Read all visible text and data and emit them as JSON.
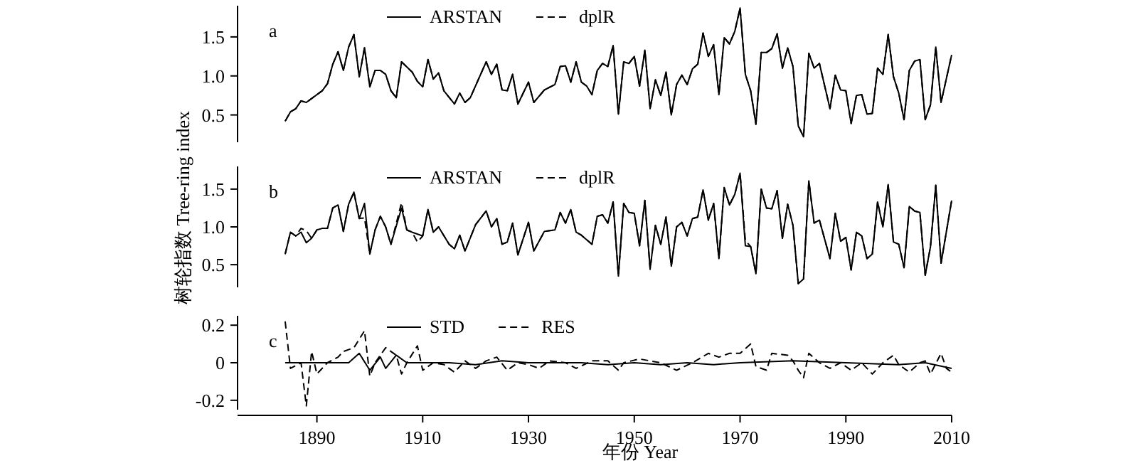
{
  "chart_data": [
    {
      "type": "line",
      "title": "a",
      "legend": "top",
      "tick_labels": "y",
      "xlim": [
        1875,
        2010
      ],
      "ylim": [
        0.15,
        1.9
      ],
      "yticks": [
        0.5,
        {
          "value": 1,
          "label": "1.0"
        },
        1.5
      ],
      "series": [
        {
          "name": "ARSTAN",
          "color": "#000000",
          "line_style": "solid",
          "x": [
            1884,
            1885,
            1886,
            1887,
            1888,
            1891,
            1892,
            1893,
            1894,
            1895,
            1896,
            1897,
            1898,
            1899,
            1900,
            1901,
            1902,
            1903,
            1904,
            1905,
            1906,
            1908,
            1909,
            1910,
            1911,
            1912,
            1913,
            1914,
            1916,
            1917,
            1918,
            1919,
            1922,
            1923,
            1924,
            1925,
            1926,
            1927,
            1928,
            1930,
            1931,
            1933,
            1935,
            1936,
            1937,
            1938,
            1939,
            1940,
            1941,
            1942,
            1943,
            1944,
            1945,
            1946,
            1947,
            1948,
            1949,
            1950,
            1951,
            1952,
            1953,
            1954,
            1955,
            1956,
            1957,
            1958,
            1959,
            1960,
            1961,
            1962,
            1963,
            1964,
            1965,
            1966,
            1967,
            1968,
            1969,
            1970,
            1971,
            1972,
            1973,
            1974,
            1975,
            1976,
            1977,
            1978,
            1979,
            1980,
            1981,
            1982,
            1983,
            1984,
            1985,
            1987,
            1988,
            1989,
            1990,
            1991,
            1992,
            1993,
            1994,
            1995,
            1996,
            1997,
            1998,
            1999,
            2000,
            2001,
            2002,
            2003,
            2004,
            2005,
            2006,
            2007,
            2008,
            2010
          ],
          "values": [
            0.42,
            0.54,
            0.58,
            0.68,
            0.66,
            0.81,
            0.9,
            1.15,
            1.31,
            1.07,
            1.37,
            1.53,
            0.99,
            1.36,
            0.86,
            1.07,
            1.07,
            1.02,
            0.81,
            0.72,
            1.18,
            1.05,
            0.93,
            0.86,
            1.21,
            0.96,
            1.04,
            0.81,
            0.64,
            0.78,
            0.66,
            0.72,
            1.18,
            1.02,
            1.15,
            0.82,
            0.81,
            1.02,
            0.64,
            0.92,
            0.66,
            0.82,
            0.89,
            1.12,
            1.13,
            0.92,
            1.18,
            0.92,
            0.87,
            0.76,
            1.07,
            1.16,
            1.12,
            1.39,
            0.51,
            1.18,
            1.16,
            1.25,
            0.87,
            1.33,
            0.58,
            0.95,
            0.75,
            1.05,
            0.5,
            0.89,
            1.01,
            0.89,
            1.09,
            1.15,
            1.55,
            1.25,
            1.4,
            0.76,
            1.49,
            1.41,
            1.57,
            1.87,
            1.02,
            0.81,
            0.38,
            1.3,
            1.3,
            1.35,
            1.54,
            1.1,
            1.36,
            1.12,
            0.36,
            0.22,
            1.29,
            1.1,
            1.16,
            0.58,
            1.01,
            0.82,
            0.81,
            0.39,
            0.75,
            0.76,
            0.51,
            0.52,
            1.1,
            1.02,
            1.53,
            0.99,
            0.78,
            0.44,
            1.07,
            1.19,
            1.21,
            0.44,
            0.63,
            1.37,
            0.66,
            1.27
          ]
        },
        {
          "name": "dplR",
          "color": "#000000",
          "line_style": "dashed",
          "x": [
            1884,
            1885,
            1886,
            1887,
            1888,
            1891,
            1892,
            1893,
            1894,
            1895,
            1896,
            1897,
            1898,
            1899,
            1900,
            1901,
            1902,
            1903,
            1904,
            1905,
            1906,
            1908,
            1909,
            1910,
            1911,
            1912,
            1913,
            1914,
            1916,
            1917,
            1918,
            1919,
            1922,
            1923,
            1924,
            1925,
            1926,
            1927,
            1928,
            1930,
            1931,
            1933,
            1935,
            1936,
            1937,
            1938,
            1939,
            1940,
            1941,
            1942,
            1943,
            1944,
            1945,
            1946,
            1947,
            1948,
            1949,
            1950,
            1951,
            1952,
            1953,
            1954,
            1955,
            1956,
            1957,
            1958,
            1959,
            1960,
            1961,
            1962,
            1963,
            1964,
            1965,
            1966,
            1967,
            1968,
            1969,
            1970,
            1971,
            1972,
            1973,
            1974,
            1975,
            1976,
            1977,
            1978,
            1979,
            1980,
            1981,
            1982,
            1983,
            1984,
            1985,
            1987,
            1988,
            1989,
            1990,
            1991,
            1992,
            1993,
            1994,
            1995,
            1996,
            1997,
            1998,
            1999,
            2000,
            2001,
            2002,
            2003,
            2004,
            2005,
            2006,
            2007,
            2008,
            2010
          ],
          "values": [
            0.42,
            0.54,
            0.58,
            0.68,
            0.66,
            0.81,
            0.9,
            1.15,
            1.31,
            1.07,
            1.37,
            1.53,
            0.99,
            1.36,
            0.86,
            1.07,
            1.07,
            1.02,
            0.81,
            0.72,
            1.18,
            1.05,
            0.93,
            0.86,
            1.21,
            0.96,
            1.04,
            0.81,
            0.64,
            0.78,
            0.66,
            0.72,
            1.18,
            1.02,
            1.15,
            0.82,
            0.81,
            1.02,
            0.64,
            0.92,
            0.66,
            0.82,
            0.89,
            1.12,
            1.13,
            0.92,
            1.18,
            0.92,
            0.87,
            0.76,
            1.07,
            1.16,
            1.12,
            1.39,
            0.51,
            1.18,
            1.16,
            1.25,
            0.87,
            1.33,
            0.58,
            0.95,
            0.75,
            1.05,
            0.5,
            0.89,
            1.01,
            0.89,
            1.09,
            1.15,
            1.55,
            1.25,
            1.4,
            0.76,
            1.49,
            1.41,
            1.57,
            1.87,
            1.02,
            0.81,
            0.38,
            1.3,
            1.3,
            1.35,
            1.54,
            1.1,
            1.36,
            1.12,
            0.36,
            0.22,
            1.29,
            1.1,
            1.16,
            0.58,
            1.01,
            0.82,
            0.81,
            0.39,
            0.75,
            0.76,
            0.51,
            0.52,
            1.1,
            1.02,
            1.53,
            0.99,
            0.78,
            0.44,
            1.07,
            1.19,
            1.21,
            0.44,
            0.63,
            1.37,
            0.66,
            1.27
          ]
        }
      ]
    },
    {
      "type": "line",
      "title": "b",
      "ylabel": "树轮指数 Tree-ring index",
      "legend": "top",
      "tick_labels": "y",
      "xlim": [
        1875,
        2010
      ],
      "ylim": [
        0.2,
        1.8
      ],
      "yticks": [
        0.5,
        {
          "value": 1,
          "label": "1.0"
        },
        1.5
      ],
      "series": [
        {
          "name": "ARSTAN",
          "color": "#000000",
          "line_style": "solid",
          "x": [
            1884,
            1885,
            1886,
            1887,
            1888,
            1889,
            1890,
            1891,
            1892,
            1893,
            1894,
            1895,
            1896,
            1897,
            1898,
            1899,
            1900,
            1901,
            1902,
            1903,
            1904,
            1906,
            1907,
            1908,
            1910,
            1911,
            1912,
            1913,
            1915,
            1916,
            1917,
            1918,
            1920,
            1922,
            1923,
            1924,
            1925,
            1926,
            1927,
            1928,
            1930,
            1931,
            1933,
            1935,
            1936,
            1937,
            1938,
            1939,
            1940,
            1942,
            1943,
            1944,
            1945,
            1946,
            1947,
            1948,
            1949,
            1950,
            1951,
            1952,
            1953,
            1954,
            1955,
            1956,
            1957,
            1958,
            1959,
            1960,
            1961,
            1962,
            1963,
            1964,
            1965,
            1966,
            1967,
            1968,
            1969,
            1970,
            1971,
            1972,
            1973,
            1974,
            1975,
            1976,
            1977,
            1978,
            1979,
            1980,
            1981,
            1982,
            1983,
            1984,
            1985,
            1987,
            1988,
            1989,
            1990,
            1991,
            1992,
            1993,
            1994,
            1995,
            1996,
            1997,
            1998,
            1999,
            2000,
            2001,
            2002,
            2003,
            2004,
            2005,
            2006,
            2007,
            2008,
            2010
          ],
          "values": [
            0.64,
            0.93,
            0.88,
            0.93,
            0.79,
            0.85,
            0.96,
            0.98,
            0.98,
            1.25,
            1.29,
            0.94,
            1.3,
            1.46,
            1.11,
            1.31,
            0.64,
            0.96,
            1.14,
            1.0,
            0.77,
            1.25,
            0.96,
            0.93,
            0.88,
            1.23,
            0.93,
            1.0,
            0.77,
            0.71,
            0.89,
            0.68,
            1.03,
            1.21,
            1.0,
            1.11,
            0.77,
            0.8,
            1.05,
            0.63,
            1.06,
            0.68,
            0.94,
            0.96,
            1.19,
            1.05,
            1.23,
            0.93,
            0.89,
            0.77,
            1.14,
            1.16,
            1.05,
            1.33,
            0.35,
            1.31,
            1.19,
            1.18,
            0.75,
            1.35,
            0.44,
            1.02,
            0.77,
            1.13,
            0.48,
            1.0,
            1.06,
            0.88,
            1.11,
            1.13,
            1.49,
            1.09,
            1.31,
            0.58,
            1.52,
            1.29,
            1.43,
            1.71,
            0.75,
            0.74,
            0.38,
            1.5,
            1.25,
            1.24,
            1.48,
            0.85,
            1.3,
            1.02,
            0.25,
            0.31,
            1.61,
            1.05,
            1.09,
            0.58,
            1.18,
            0.81,
            0.86,
            0.43,
            0.93,
            0.88,
            0.58,
            0.64,
            1.33,
            1.0,
            1.56,
            0.8,
            0.77,
            0.46,
            1.27,
            1.21,
            1.19,
            0.36,
            0.74,
            1.55,
            0.52,
            1.35
          ]
        },
        {
          "name": "dplR",
          "color": "#000000",
          "line_style": "dashed",
          "x": [
            1884,
            1885,
            1886,
            1887,
            1888,
            1889,
            1890,
            1891,
            1892,
            1893,
            1894,
            1895,
            1896,
            1897,
            1898,
            1899,
            1900,
            1901,
            1902,
            1903,
            1904,
            1906,
            1907,
            1908,
            1909,
            1910,
            1911,
            1912,
            1913,
            1915,
            1916,
            1917,
            1918,
            1920,
            1922,
            1923,
            1924,
            1925,
            1926,
            1927,
            1928,
            1930,
            1931,
            1933,
            1935,
            1936,
            1937,
            1938,
            1939,
            1940,
            1942,
            1943,
            1944,
            1945,
            1946,
            1947,
            1948,
            1949,
            1950,
            1951,
            1952,
            1953,
            1954,
            1955,
            1956,
            1957,
            1958,
            1959,
            1960,
            1961,
            1962,
            1963,
            1964,
            1965,
            1966,
            1967,
            1968,
            1969,
            1970,
            1971,
            1972,
            1973,
            1974,
            1975,
            1976,
            1977,
            1978,
            1979,
            1980,
            1981,
            1982,
            1983,
            1984,
            1985,
            1987,
            1988,
            1989,
            1990,
            1991,
            1992,
            1993,
            1994,
            1995,
            1996,
            1997,
            1998,
            1999,
            2000,
            2001,
            2002,
            2003,
            2004,
            2005,
            2006,
            2007,
            2008,
            2010
          ],
          "values": [
            0.64,
            0.93,
            0.88,
            0.98,
            0.95,
            0.85,
            0.96,
            0.98,
            0.98,
            1.25,
            1.29,
            0.94,
            1.3,
            1.46,
            1.11,
            1.12,
            0.64,
            0.96,
            1.14,
            1.0,
            0.77,
            1.32,
            0.96,
            0.93,
            0.8,
            0.88,
            1.23,
            0.93,
            1.0,
            0.77,
            0.71,
            0.89,
            0.68,
            1.03,
            1.21,
            1.0,
            1.11,
            0.77,
            0.8,
            1.05,
            0.63,
            1.06,
            0.68,
            0.94,
            0.96,
            1.19,
            1.05,
            1.23,
            0.93,
            0.89,
            0.77,
            1.14,
            1.16,
            1.05,
            1.33,
            0.35,
            1.31,
            1.19,
            1.18,
            0.75,
            1.35,
            0.44,
            1.02,
            0.77,
            1.13,
            0.48,
            1.0,
            1.06,
            0.88,
            1.11,
            1.13,
            1.49,
            1.09,
            1.31,
            0.58,
            1.52,
            1.29,
            1.43,
            1.71,
            0.82,
            0.74,
            0.38,
            1.5,
            1.25,
            1.24,
            1.48,
            0.85,
            1.3,
            1.02,
            0.25,
            0.31,
            1.61,
            1.05,
            1.09,
            0.58,
            1.18,
            0.81,
            0.86,
            0.43,
            0.93,
            0.88,
            0.58,
            0.64,
            1.33,
            1.0,
            1.56,
            0.8,
            0.77,
            0.46,
            1.27,
            1.21,
            1.19,
            0.36,
            0.74,
            1.55,
            0.52,
            1.35
          ]
        }
      ]
    },
    {
      "type": "line",
      "title": "c",
      "xlabel": "年份 Year",
      "legend": "top",
      "xlim": [
        1875,
        2010
      ],
      "ylim": [
        -0.25,
        0.25
      ],
      "yticks": [
        -0.2,
        0,
        0.2
      ],
      "xticks": [
        1890,
        1910,
        1930,
        1950,
        1970,
        1990,
        2010
      ],
      "series": [
        {
          "name": "STD",
          "color": "#000000",
          "line_style": "solid",
          "x": [
            1884,
            1890,
            1896,
            1898,
            1900,
            1902,
            1903,
            1905,
            1907,
            1915,
            1920,
            1925,
            1930,
            1940,
            1945,
            1950,
            1955,
            1960,
            1965,
            1970,
            1980,
            1990,
            2000,
            2005,
            2010
          ],
          "values": [
            0,
            0,
            0,
            0.05,
            -0.04,
            0.03,
            -0.03,
            0.04,
            0,
            0,
            -0.01,
            0.01,
            0,
            0,
            -0.01,
            0,
            -0.01,
            0,
            -0.01,
            0,
            0.01,
            0,
            -0.01,
            0,
            -0.03
          ]
        },
        {
          "name": "RES",
          "color": "#000000",
          "line_style": "dashed",
          "x": [
            1884,
            1885,
            1887,
            1888,
            1889,
            1890,
            1892,
            1894,
            1895,
            1897,
            1899,
            1900,
            1901,
            1903,
            1905,
            1906,
            1907,
            1909,
            1910,
            1912,
            1914,
            1916,
            1918,
            1920,
            1922,
            1924,
            1926,
            1928,
            1930,
            1932,
            1934,
            1937,
            1939,
            1942,
            1945,
            1947,
            1948,
            1951,
            1955,
            1958,
            1961,
            1964,
            1966,
            1968,
            1970,
            1972,
            1973,
            1975,
            1976,
            1979,
            1980,
            1981,
            1982,
            1983,
            1985,
            1987,
            1989,
            1991,
            1993,
            1995,
            1997,
            1999,
            2000,
            2002,
            2004,
            2005,
            2006,
            2008,
            2009,
            2010
          ],
          "values": [
            0.22,
            -0.03,
            0,
            -0.23,
            0.06,
            -0.06,
            0,
            0.03,
            0.06,
            0.08,
            0.17,
            -0.07,
            0,
            0.08,
            0.04,
            -0.06,
            0,
            0.09,
            -0.04,
            0,
            -0.01,
            -0.05,
            0.01,
            -0.03,
            0.01,
            0.03,
            -0.04,
            0,
            -0.01,
            -0.03,
            0.01,
            0,
            -0.03,
            0.01,
            0.01,
            -0.04,
            0,
            0.02,
            0,
            -0.04,
            0,
            0.05,
            0.03,
            0.05,
            0.05,
            0.1,
            -0.02,
            -0.04,
            0.05,
            0.04,
            0.01,
            -0.04,
            -0.08,
            0.05,
            0,
            -0.03,
            0,
            -0.04,
            0,
            -0.06,
            0,
            0.04,
            -0.01,
            -0.05,
            0,
            0.01,
            -0.06,
            0.05,
            -0.03,
            -0.05
          ]
        }
      ]
    }
  ]
}
